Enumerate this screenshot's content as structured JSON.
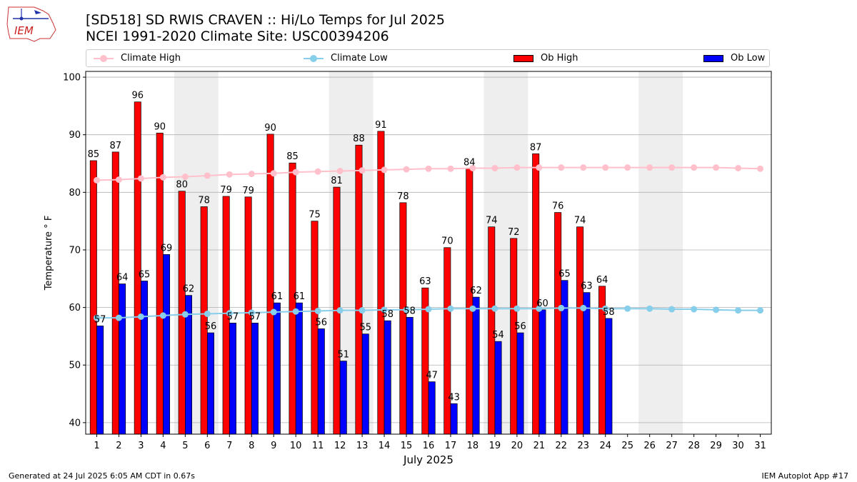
{
  "header": {
    "title_line1": "[SD518] SD RWIS CRAVEN :: Hi/Lo Temps for Jul 2025",
    "title_line2": "NCEI 1991-2020 Climate Site: USC00394206",
    "logo_text": "IEM"
  },
  "legend": {
    "climate_high": "Climate High",
    "climate_low": "Climate Low",
    "ob_high": "Ob High",
    "ob_low": "Ob Low"
  },
  "footer": {
    "left": "Generated at 24 Jul 2025 6:05 AM CDT in 0.67s",
    "right": "IEM Autoplot App #17"
  },
  "colors": {
    "ob_high": "#ff0000",
    "ob_low": "#0000ff",
    "climate_high": "#ffc0cb",
    "climate_low": "#87ceeb",
    "weekend_shade": "#eeeeee",
    "grid": "#b0b0b0"
  },
  "chart_data": {
    "type": "bar",
    "xlabel": "July 2025",
    "ylabel": "Temperature ° F",
    "ylim": [
      38,
      101
    ],
    "yticks": [
      40,
      50,
      60,
      70,
      80,
      90,
      100
    ],
    "grid": "horizontal",
    "legend_position": "top",
    "categories": [
      "1",
      "2",
      "3",
      "4",
      "5",
      "6",
      "7",
      "8",
      "9",
      "10",
      "11",
      "12",
      "13",
      "14",
      "15",
      "16",
      "17",
      "18",
      "19",
      "20",
      "21",
      "22",
      "23",
      "24",
      "25",
      "26",
      "27",
      "28",
      "29",
      "30",
      "31"
    ],
    "shaded_days": [
      [
        5,
        6
      ],
      [
        12,
        13
      ],
      [
        19,
        20
      ],
      [
        26,
        27
      ]
    ],
    "series": [
      {
        "name": "Ob High",
        "kind": "bar",
        "values": [
          85.5,
          87,
          95.7,
          90.3,
          80.2,
          77.5,
          79.3,
          79.2,
          90.1,
          85.1,
          75,
          80.9,
          88.2,
          90.6,
          78.2,
          63.4,
          70.4,
          84.1,
          74,
          72,
          86.7,
          76.5,
          74,
          63.7,
          null,
          null,
          null,
          null,
          null,
          null,
          null
        ],
        "labels": [
          "85",
          "87",
          "96",
          "90",
          "80",
          "78",
          "79",
          "79",
          "90",
          "85",
          "75",
          "81",
          "88",
          "91",
          "78",
          "63",
          "70",
          "84",
          "74",
          "72",
          "87",
          "76",
          "74",
          "64",
          "",
          "",
          "",
          "",
          "",
          "",
          ""
        ]
      },
      {
        "name": "Ob Low",
        "kind": "bar",
        "values": [
          56.8,
          64.1,
          64.6,
          69.2,
          62.1,
          55.6,
          57.3,
          57.3,
          60.8,
          60.8,
          56.3,
          50.7,
          55.4,
          57.7,
          58.3,
          47.1,
          43.3,
          61.8,
          54.1,
          55.6,
          59.6,
          64.7,
          62.6,
          58.1,
          null,
          null,
          null,
          null,
          null,
          null,
          null
        ],
        "labels": [
          "57",
          "64",
          "65",
          "69",
          "62",
          "56",
          "57",
          "57",
          "61",
          "61",
          "56",
          "51",
          "55",
          "58",
          "58",
          "47",
          "43",
          "62",
          "54",
          "56",
          "60",
          "65",
          "63",
          "58",
          "",
          "",
          "",
          "",
          "",
          "",
          ""
        ]
      },
      {
        "name": "Climate High",
        "kind": "line",
        "values": [
          82.1,
          82.2,
          82.4,
          82.6,
          82.7,
          82.9,
          83.1,
          83.2,
          83.3,
          83.5,
          83.6,
          83.7,
          83.8,
          83.9,
          84.0,
          84.1,
          84.1,
          84.2,
          84.2,
          84.3,
          84.3,
          84.3,
          84.3,
          84.3,
          84.3,
          84.3,
          84.3,
          84.3,
          84.3,
          84.2,
          84.1
        ]
      },
      {
        "name": "Climate Low",
        "kind": "line",
        "values": [
          58.2,
          58.2,
          58.4,
          58.6,
          58.8,
          58.9,
          59.0,
          59.1,
          59.2,
          59.3,
          59.4,
          59.5,
          59.5,
          59.6,
          59.6,
          59.7,
          59.8,
          59.8,
          59.8,
          59.8,
          59.8,
          59.9,
          59.9,
          59.8,
          59.8,
          59.8,
          59.7,
          59.7,
          59.6,
          59.5,
          59.5
        ]
      }
    ]
  }
}
